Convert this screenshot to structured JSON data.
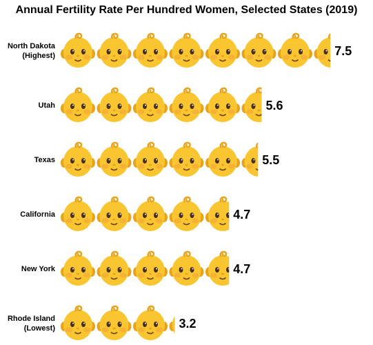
{
  "chart_data": {
    "type": "bar",
    "orientation": "horizontal",
    "title": "Annual Fertility Rate Per Hundred Women, Selected States (2019)",
    "categories": [
      [
        "North Dakota",
        "(Highest)"
      ],
      [
        "Utah"
      ],
      [
        "Texas"
      ],
      [
        "California"
      ],
      [
        "New York"
      ],
      [
        "Rhode Island",
        "(Lowest)"
      ]
    ],
    "values": [
      7.5,
      5.6,
      5.5,
      4.7,
      4.7,
      3.2
    ],
    "value_labels": [
      "7.5",
      "5.6",
      "5.5",
      "4.7",
      "4.7",
      "3.2"
    ],
    "icon": "baby-face-icon",
    "colors": {
      "skin": "#F9C530",
      "skin_shade": "#E7A31C",
      "cheek": "#F2A23A",
      "eye": "#4A2E14",
      "mouth": "#7A4A1C"
    }
  }
}
